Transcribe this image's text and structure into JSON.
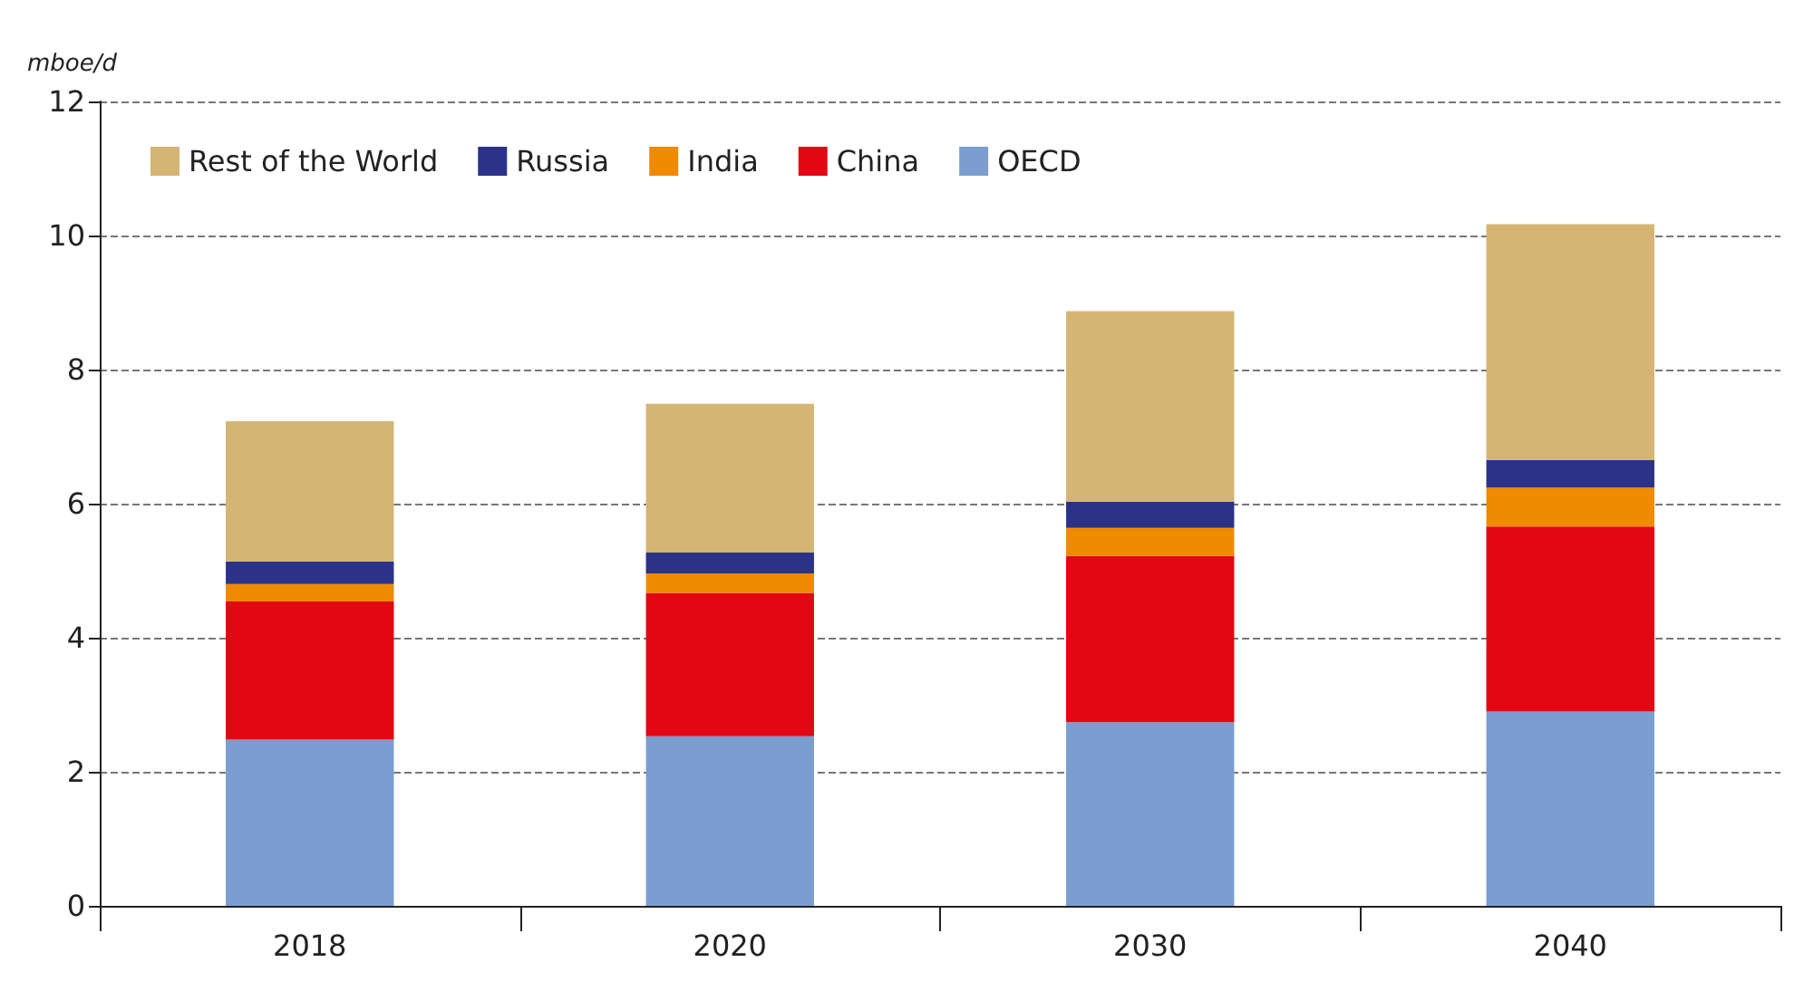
{
  "chart_data": {
    "type": "bar",
    "ylabel": "mboe/d",
    "categories": [
      "2018",
      "2020",
      "2030",
      "2040"
    ],
    "stacked": true,
    "series": [
      {
        "name": "OECD",
        "color": "#7b9dd0",
        "values": [
          2.48,
          2.53,
          2.74,
          2.9
        ]
      },
      {
        "name": "China",
        "color": "#e30613",
        "values": [
          2.06,
          2.14,
          2.48,
          2.76
        ]
      },
      {
        "name": "India",
        "color": "#f08a00",
        "values": [
          0.26,
          0.29,
          0.42,
          0.58
        ]
      },
      {
        "name": "Russia",
        "color": "#2a3388",
        "values": [
          0.34,
          0.31,
          0.39,
          0.41
        ]
      },
      {
        "name": "Rest of the World",
        "color": "#d4b574",
        "values": [
          2.09,
          2.22,
          2.84,
          3.52
        ]
      }
    ],
    "ylim": [
      0,
      12
    ],
    "yticks": [
      0,
      2,
      4,
      6,
      8,
      10,
      12
    ],
    "grid": "y",
    "legend": "top left"
  }
}
